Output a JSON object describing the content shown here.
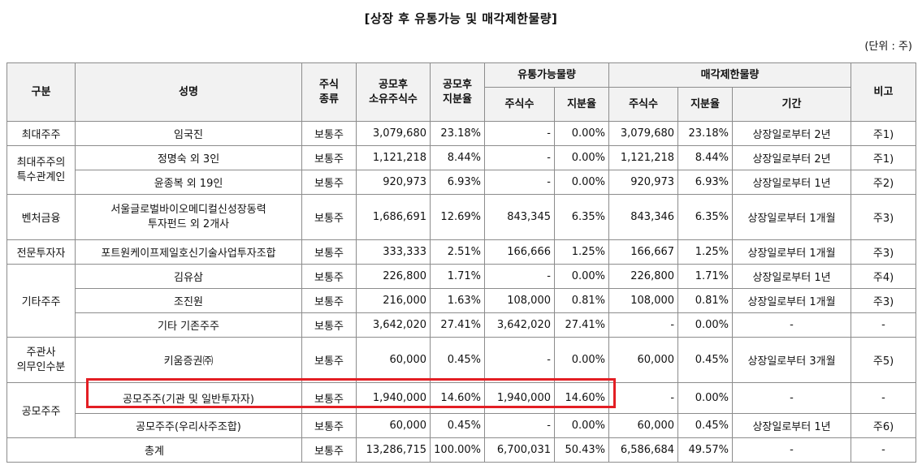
{
  "title": "[상장 후 유통가능 및 매각제한물량]",
  "unit": "(단위 : 주)",
  "headers": {
    "category": "구분",
    "name": "성명",
    "stock_type": [
      "주식",
      "종류"
    ],
    "post_ipo_shares": [
      "공모후",
      "소유주식수"
    ],
    "post_ipo_ratio": [
      "공모후",
      "지분율"
    ],
    "tradable": "유통가능물량",
    "restricted": "매각제한물량",
    "shares": "주식수",
    "ratio": "지분율",
    "period": "기간",
    "remarks": "비고"
  },
  "groups": [
    {
      "label": [
        "최대주주"
      ]
    },
    {
      "label": [
        "최대주주의",
        "특수관계인"
      ]
    },
    {
      "label": [
        "벤처금융"
      ]
    },
    {
      "label": [
        "전문투자자"
      ]
    },
    {
      "label": [
        "기타주주"
      ]
    },
    {
      "label": [
        "주관사",
        "의무인수분"
      ]
    },
    {
      "label": [
        "공모주주"
      ]
    },
    {
      "label": [
        "총계"
      ]
    }
  ],
  "rows": [
    {
      "name": [
        "임국진"
      ],
      "type": "보통주",
      "shares": "3,079,680",
      "ratio": "23.18%",
      "t_shares": "-",
      "t_ratio": "0.00%",
      "r_shares": "3,079,680",
      "r_ratio": "23.18%",
      "period": "상장일로부터 2년",
      "note": "주1)"
    },
    {
      "name": [
        "정명숙 외 3인"
      ],
      "type": "보통주",
      "shares": "1,121,218",
      "ratio": "8.44%",
      "t_shares": "-",
      "t_ratio": "0.00%",
      "r_shares": "1,121,218",
      "r_ratio": "8.44%",
      "period": "상장일로부터 2년",
      "note": "주1)"
    },
    {
      "name": [
        "윤종복 외 19인"
      ],
      "type": "보통주",
      "shares": "920,973",
      "ratio": "6.93%",
      "t_shares": "-",
      "t_ratio": "0.00%",
      "r_shares": "920,973",
      "r_ratio": "6.93%",
      "period": "상장일로부터 1년",
      "note": "주2)"
    },
    {
      "name": [
        "서울글로벌바이오메디컬신성장동력",
        "투자펀드 외 2개사"
      ],
      "type": "보통주",
      "shares": "1,686,691",
      "ratio": "12.69%",
      "t_shares": "843,345",
      "t_ratio": "6.35%",
      "r_shares": "843,346",
      "r_ratio": "6.35%",
      "period": "상장일로부터 1개월",
      "note": "주3)"
    },
    {
      "name": [
        "포트원케이프제일호신기술사업투자조합"
      ],
      "type": "보통주",
      "shares": "333,333",
      "ratio": "2.51%",
      "t_shares": "166,666",
      "t_ratio": "1.25%",
      "r_shares": "166,667",
      "r_ratio": "1.25%",
      "period": "상장일로부터 1개월",
      "note": "주3)"
    },
    {
      "name": [
        "김유삼"
      ],
      "type": "보통주",
      "shares": "226,800",
      "ratio": "1.71%",
      "t_shares": "-",
      "t_ratio": "0.00%",
      "r_shares": "226,800",
      "r_ratio": "1.71%",
      "period": "상장일로부터 1년",
      "note": "주4)"
    },
    {
      "name": [
        "조진원"
      ],
      "type": "보통주",
      "shares": "216,000",
      "ratio": "1.63%",
      "t_shares": "108,000",
      "t_ratio": "0.81%",
      "r_shares": "108,000",
      "r_ratio": "0.81%",
      "period": "상장일로부터 1개월",
      "note": "주3)"
    },
    {
      "name": [
        "기타 기존주주"
      ],
      "type": "보통주",
      "shares": "3,642,020",
      "ratio": "27.41%",
      "t_shares": "3,642,020",
      "t_ratio": "27.41%",
      "r_shares": "-",
      "r_ratio": "0.00%",
      "period": "-",
      "note": "-"
    },
    {
      "name": [
        "키움증권㈜"
      ],
      "type": "보통주",
      "shares": "60,000",
      "ratio": "0.45%",
      "t_shares": "-",
      "t_ratio": "0.00%",
      "r_shares": "60,000",
      "r_ratio": "0.45%",
      "period": "상장일로부터 3개월",
      "note": "주5)"
    },
    {
      "name": [
        "공모주주(기관 및 일반투자자)"
      ],
      "type": "보통주",
      "shares": "1,940,000",
      "ratio": "14.60%",
      "t_shares": "1,940,000",
      "t_ratio": "14.60%",
      "r_shares": "-",
      "r_ratio": "0.00%",
      "period": "-",
      "note": "-"
    },
    {
      "name": [
        "공모주주(우리사주조합)"
      ],
      "type": "보통주",
      "shares": "60,000",
      "ratio": "0.45%",
      "t_shares": "-",
      "t_ratio": "0.00%",
      "r_shares": "60,000",
      "r_ratio": "0.45%",
      "period": "상장일로부터 1년",
      "note": "주6)"
    },
    {
      "name": [
        ""
      ],
      "type": "보통주",
      "shares": "13,286,715",
      "ratio": "100.00%",
      "t_shares": "6,700,031",
      "t_ratio": "50.43%",
      "r_shares": "6,586,684",
      "r_ratio": "49.57%",
      "period": "-",
      "note": "-"
    }
  ],
  "highlight_color": "#e31e24"
}
